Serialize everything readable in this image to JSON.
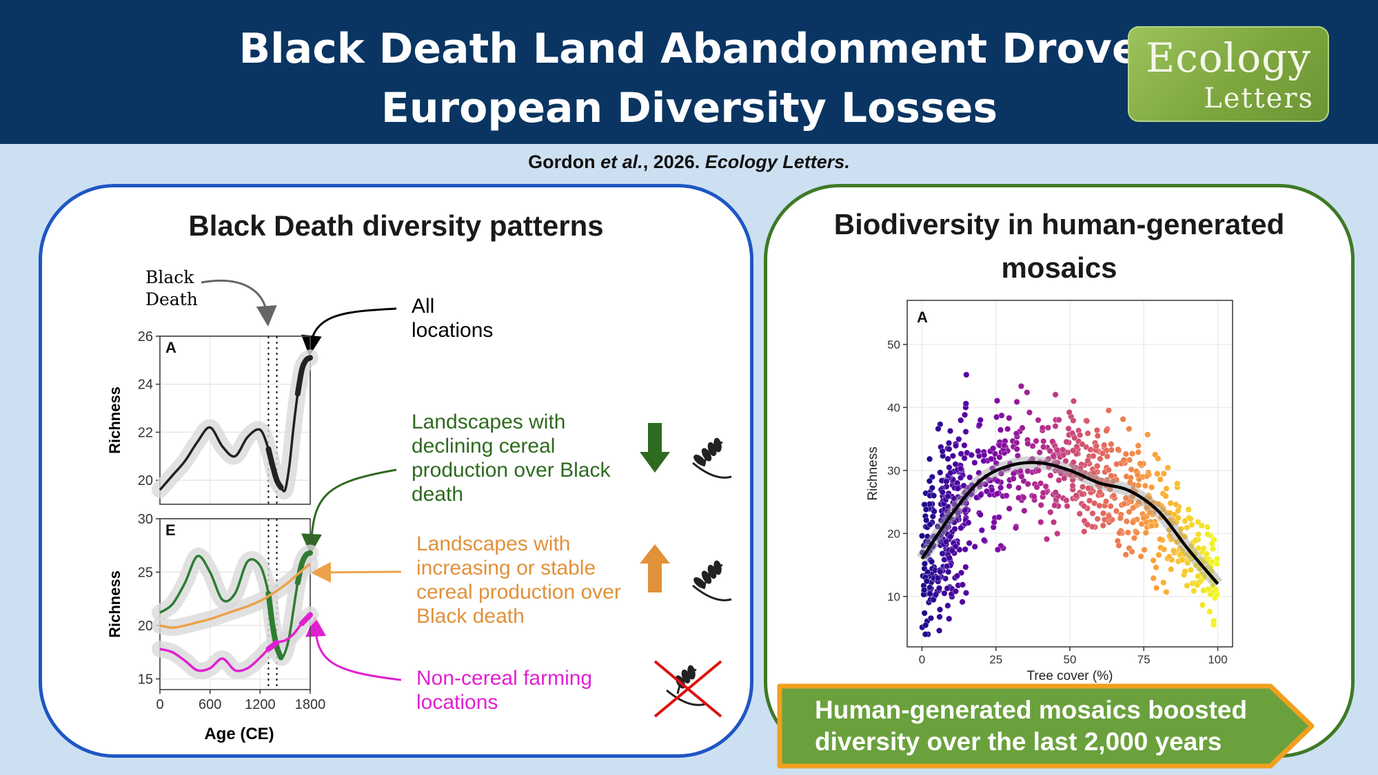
{
  "header": {
    "title_line1": "Black Death Land Abandonment Drove",
    "title_line2": "European Diversity Losses",
    "logo_line1": "Ecology",
    "logo_line2": "Letters"
  },
  "citation": {
    "authors": "Gordon ",
    "etal": "et al.",
    "year": ", 2026. ",
    "journal": "Ecology Letters."
  },
  "left_panel": {
    "title": "Black Death diversity patterns",
    "black_death_label_1": "Black",
    "black_death_label_2": "Death",
    "all_locations_1": "All",
    "all_locations_2": "locations",
    "declining_lines": [
      "Landscapes with",
      "declining cereal",
      "production over Black",
      "death"
    ],
    "increasing_lines": [
      "Landscapes with",
      "increasing or stable",
      "cereal production over",
      "Black death"
    ],
    "noncereal_lines": [
      "Non-cereal farming",
      "locations"
    ],
    "colors": {
      "declining": "#2e6a1f",
      "increasing": "#e0913a",
      "noncereal": "#e020d0",
      "all": "#000000"
    }
  },
  "chart_data": [
    {
      "type": "line",
      "panel_letter": "A",
      "xlabel": "",
      "ylabel": "Richness",
      "xlim": [
        0,
        1800
      ],
      "ylim": [
        19,
        26
      ],
      "yticks": [
        20,
        22,
        24,
        26
      ],
      "black_death_markers": [
        1300,
        1400
      ],
      "series": [
        {
          "color": "#222222",
          "x": [
            0,
            150,
            300,
            450,
            600,
            750,
            900,
            1050,
            1200,
            1300,
            1350,
            1400,
            1450,
            1500,
            1550,
            1600,
            1650,
            1700,
            1750,
            1800
          ],
          "y": [
            19.6,
            20.2,
            20.8,
            21.6,
            22.2,
            21.4,
            21.0,
            21.8,
            22.1,
            21.3,
            20.6,
            20.0,
            19.7,
            19.6,
            20.6,
            22.2,
            23.6,
            24.6,
            25.0,
            25.1
          ]
        }
      ]
    },
    {
      "type": "line",
      "panel_letter": "E",
      "xlabel": "Age (CE)",
      "ylabel": "Richness",
      "xlim": [
        0,
        1800
      ],
      "ylim": [
        14,
        30
      ],
      "xticks": [
        0,
        600,
        1200,
        1800
      ],
      "yticks": [
        15,
        20,
        25,
        30
      ],
      "black_death_markers": [
        1300,
        1400
      ],
      "series": [
        {
          "color": "#2e7d32",
          "x": [
            0,
            150,
            300,
            450,
            600,
            750,
            900,
            1050,
            1200,
            1300,
            1350,
            1400,
            1450,
            1500,
            1550,
            1600,
            1650,
            1700,
            1750,
            1800
          ],
          "y": [
            21.2,
            22.0,
            24.0,
            26.5,
            25.0,
            22.4,
            23.0,
            26.0,
            25.6,
            23.0,
            20.0,
            18.0,
            17.0,
            17.5,
            19.0,
            21.5,
            24.0,
            25.8,
            26.6,
            26.8
          ]
        },
        {
          "color": "#eba24a",
          "x": [
            0,
            150,
            300,
            450,
            600,
            750,
            900,
            1050,
            1200,
            1350,
            1500,
            1650,
            1800
          ],
          "y": [
            20.0,
            19.8,
            20.0,
            20.3,
            20.6,
            21.0,
            21.4,
            21.8,
            22.3,
            23.0,
            23.8,
            24.8,
            25.8
          ]
        },
        {
          "color": "#e020d0",
          "x": [
            0,
            150,
            300,
            450,
            600,
            750,
            900,
            1050,
            1200,
            1300,
            1400,
            1500,
            1600,
            1700,
            1800
          ],
          "y": [
            17.8,
            17.5,
            16.7,
            15.8,
            16.0,
            16.9,
            15.8,
            16.0,
            17.0,
            17.8,
            18.4,
            18.6,
            19.2,
            20.2,
            21.0
          ]
        }
      ]
    },
    {
      "type": "scatter",
      "panel_letter": "A",
      "xlabel": "Tree cover (%)",
      "ylabel": "Richness",
      "xlim": [
        -5,
        105
      ],
      "ylim": [
        2,
        57
      ],
      "xticks": [
        0,
        25,
        50,
        75,
        100
      ],
      "yticks": [
        10,
        20,
        30,
        40,
        50
      ],
      "color_scale": [
        "#1a0a8c",
        "#6a00a8",
        "#b12a90",
        "#e16462",
        "#fca636",
        "#f0f921"
      ],
      "smooth": {
        "x": [
          0,
          10,
          20,
          30,
          40,
          50,
          60,
          70,
          80,
          90,
          100
        ],
        "y": [
          16,
          23,
          28.5,
          30.8,
          31.2,
          30.0,
          28.0,
          26.8,
          23.5,
          17.5,
          12.0
        ]
      }
    }
  ],
  "right_panel": {
    "title_line1": "Biodiversity in human-generated",
    "title_line2": "mosaics",
    "banner_line1": "Human-generated mosaics boosted",
    "banner_line2": "diversity over the last 2,000 years"
  }
}
